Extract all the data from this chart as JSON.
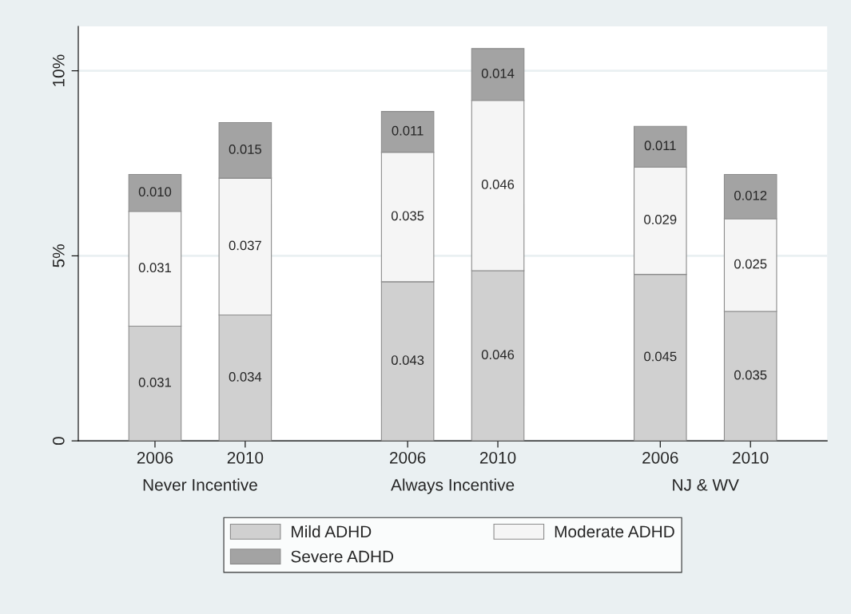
{
  "chart_data": {
    "type": "bar",
    "stacked": true,
    "categories": [
      "2006",
      "2010",
      "2006",
      "2010",
      "2006",
      "2010"
    ],
    "series": [
      {
        "name": "Mild ADHD",
        "color": "#d0d0d0",
        "values": [
          0.031,
          0.034,
          0.043,
          0.046,
          0.045,
          0.035
        ],
        "value_labels": [
          "0.031",
          "0.034",
          "0.043",
          "0.046",
          "0.045",
          "0.035"
        ]
      },
      {
        "name": "Moderate ADHD",
        "color": "#f5f5f5",
        "values": [
          0.031,
          0.037,
          0.035,
          0.046,
          0.029,
          0.025
        ],
        "value_labels": [
          "0.031",
          "0.037",
          "0.035",
          "0.046",
          "0.029",
          "0.025"
        ]
      },
      {
        "name": "Severe ADHD",
        "color": "#a3a3a3",
        "values": [
          0.01,
          0.015,
          0.011,
          0.014,
          0.011,
          0.012
        ],
        "value_labels": [
          "0.010",
          "0.015",
          "0.011",
          "0.014",
          "0.011",
          "0.012"
        ]
      }
    ],
    "annotations": [
      "Never Incentive",
      "Always Incentive",
      "NJ & WV"
    ],
    "ylim": [
      0,
      0.112
    ],
    "yticks": [
      {
        "value": 0,
        "label": "0"
      },
      {
        "value": 0.05,
        "label": "5%"
      },
      {
        "value": 0.1,
        "label": "10%"
      }
    ],
    "grid": "y",
    "legend": "bottom"
  }
}
